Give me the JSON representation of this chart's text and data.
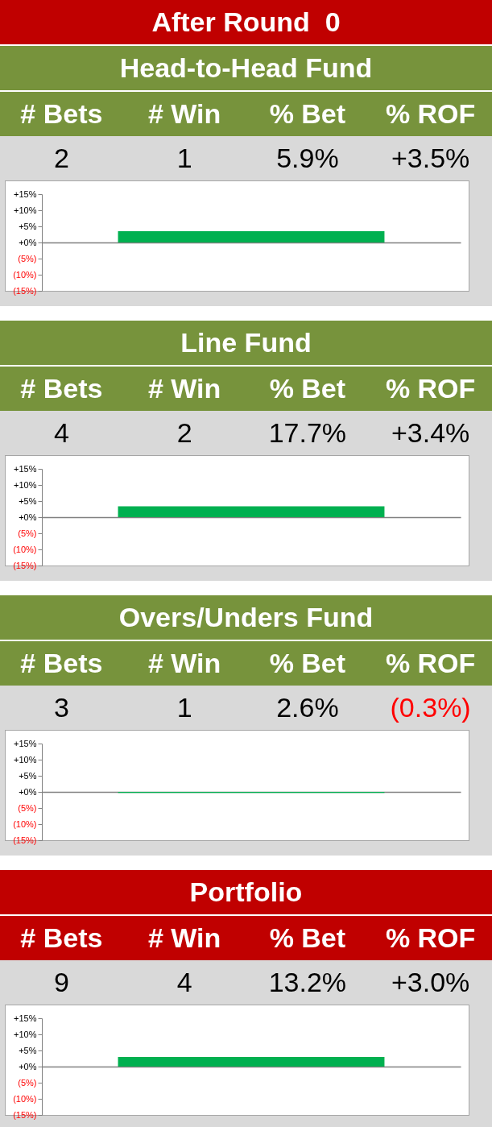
{
  "chart_data": [
    {
      "type": "other",
      "title": "After Round  0",
      "subtitle": "Head-to-Head Fund",
      "categories": [
        "# Bets",
        "# Win",
        "% Bet",
        "% ROF"
      ],
      "values": [
        2,
        1,
        5.9,
        3.5
      ],
      "value_labels": [
        "2",
        "1",
        "5.9%",
        "+3.5%"
      ]
    },
    {
      "type": "bar",
      "categories": [
        null
      ],
      "values": [
        3.5
      ],
      "color": "#00b050",
      "ylim": [
        -15,
        15
      ],
      "yticks": [
        {
          "value": 15,
          "label": "+15%"
        },
        {
          "value": 10,
          "label": "+10%"
        },
        {
          "value": 5,
          "label": "+5%"
        },
        {
          "value": 0,
          "label": "+0%"
        },
        {
          "value": -5,
          "label": "(5%)"
        },
        {
          "value": -10,
          "label": "(10%)"
        },
        {
          "value": -15,
          "label": "(15%)"
        }
      ],
      "tick_labels": "y"
    },
    {
      "type": "other",
      "title": "Line Fund",
      "categories": [
        "# Bets",
        "# Win",
        "% Bet",
        "% ROF"
      ],
      "values": [
        4,
        2,
        17.7,
        3.4
      ],
      "value_labels": [
        "4",
        "2",
        "17.7%",
        "+3.4%"
      ]
    },
    {
      "type": "bar",
      "categories": [
        null
      ],
      "values": [
        3.4
      ],
      "color": "#00b050",
      "ylim": [
        -15,
        15
      ],
      "yticks": [
        {
          "value": 15,
          "label": "+15%"
        },
        {
          "value": 10,
          "label": "+10%"
        },
        {
          "value": 5,
          "label": "+5%"
        },
        {
          "value": 0,
          "label": "+0%"
        },
        {
          "value": -5,
          "label": "(5%)"
        },
        {
          "value": -10,
          "label": "(10%)"
        },
        {
          "value": -15,
          "label": "(15%)"
        }
      ],
      "tick_labels": "y"
    },
    {
      "type": "other",
      "title": "Overs/Unders Fund",
      "categories": [
        "# Bets",
        "# Win",
        "% Bet",
        "% ROF"
      ],
      "values": [
        3,
        1,
        2.6,
        -0.3
      ],
      "value_labels": [
        "3",
        "1",
        "2.6%",
        "(0.3%)"
      ]
    },
    {
      "type": "bar",
      "categories": [
        null
      ],
      "values": [
        -0.3
      ],
      "color": "#00b050",
      "ylim": [
        -15,
        15
      ],
      "yticks": [
        {
          "value": 15,
          "label": "+15%"
        },
        {
          "value": 10,
          "label": "+10%"
        },
        {
          "value": 5,
          "label": "+5%"
        },
        {
          "value": 0,
          "label": "+0%"
        },
        {
          "value": -5,
          "label": "(5%)"
        },
        {
          "value": -10,
          "label": "(10%)"
        },
        {
          "value": -15,
          "label": "(15%)"
        }
      ],
      "tick_labels": "y"
    },
    {
      "type": "other",
      "title": "Portfolio",
      "categories": [
        "# Bets",
        "# Win",
        "% Bet",
        "% ROF"
      ],
      "values": [
        9,
        4,
        13.2,
        3.0
      ],
      "value_labels": [
        "9",
        "4",
        "13.2%",
        "+3.0%"
      ]
    },
    {
      "type": "bar",
      "categories": [
        null
      ],
      "values": [
        3.0
      ],
      "color": "#00b050",
      "ylim": [
        -15,
        15
      ],
      "yticks": [
        {
          "value": 15,
          "label": "+15%"
        },
        {
          "value": 10,
          "label": "+10%"
        },
        {
          "value": 5,
          "label": "+5%"
        },
        {
          "value": 0,
          "label": "+0%"
        },
        {
          "value": -5,
          "label": "(5%)"
        },
        {
          "value": -10,
          "label": "(10%)"
        },
        {
          "value": -15,
          "label": "(15%)"
        }
      ],
      "tick_labels": "y"
    }
  ]
}
